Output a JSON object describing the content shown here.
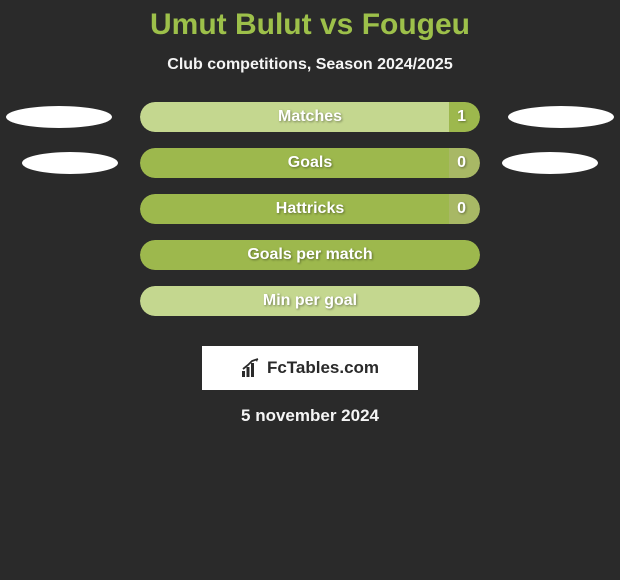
{
  "title_color": "#9dc04a",
  "title_parts": {
    "player1": "Umut Bulut",
    "vs": "vs",
    "player2": "Fougeu"
  },
  "subtitle": "Club competitions, Season 2024/2025",
  "background_color": "#2a2a2a",
  "colors": {
    "light_green": "#c4d78f",
    "dark_green": "#9db84d",
    "olive": "#a8b865",
    "ellipse": "#ffffff"
  },
  "stats": [
    {
      "label": "Matches",
      "value": "1",
      "left_width_pct": 91,
      "left_color": "#c4d78f",
      "right_color": "#9db84d",
      "show_value": true,
      "ellipses": "outer"
    },
    {
      "label": "Goals",
      "value": "0",
      "left_width_pct": 91,
      "left_color": "#9db84d",
      "right_color": "#a8b865",
      "show_value": true,
      "ellipses": "inner"
    },
    {
      "label": "Hattricks",
      "value": "0",
      "left_width_pct": 91,
      "left_color": "#9db84d",
      "right_color": "#a8b865",
      "show_value": true,
      "ellipses": "none"
    },
    {
      "label": "Goals per match",
      "value": "",
      "left_width_pct": 100,
      "left_color": "#9db84d",
      "right_color": "#9db84d",
      "show_value": false,
      "ellipses": "none"
    },
    {
      "label": "Min per goal",
      "value": "",
      "left_width_pct": 100,
      "left_color": "#c4d78f",
      "right_color": "#c4d78f",
      "show_value": false,
      "ellipses": "none"
    }
  ],
  "brand": {
    "text": "FcTables.com",
    "icon_color": "#2a2a2a",
    "box_bg": "#ffffff"
  },
  "date": "5 november 2024"
}
